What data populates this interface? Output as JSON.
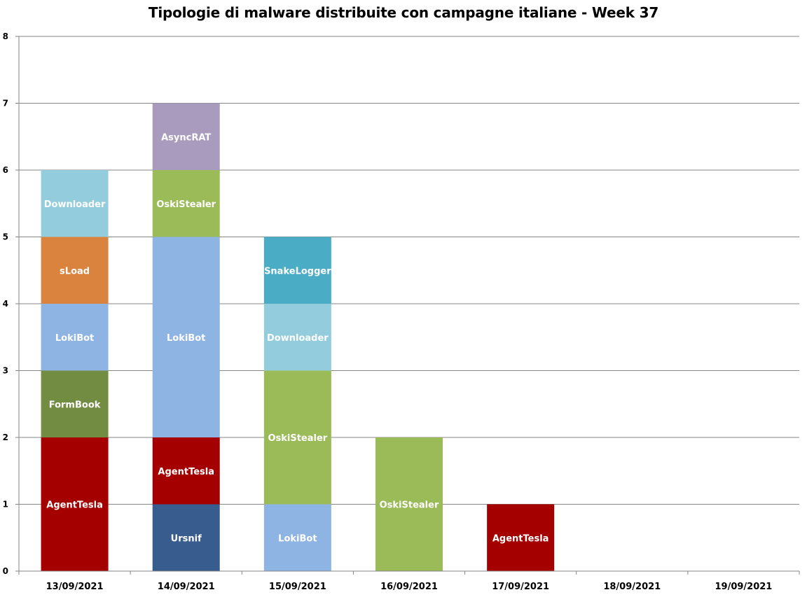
{
  "chart_data": {
    "type": "bar",
    "stacked": true,
    "title": "Tipologie di malware distribuite con campagne italiane - Week 37",
    "xlabel": "",
    "ylabel": "",
    "ylim": [
      0,
      8
    ],
    "yticks": [
      "0",
      "1",
      "2",
      "3",
      "4",
      "5",
      "6",
      "7",
      "8"
    ],
    "grid": true,
    "legend": "none",
    "categories": [
      "13/09/2021",
      "14/09/2021",
      "15/09/2021",
      "16/09/2021",
      "17/09/2021",
      "18/09/2021",
      "19/09/2021"
    ],
    "stacks": [
      [
        {
          "label": "AgentTesla",
          "value": 2,
          "color": "#A50000"
        },
        {
          "label": "FormBook",
          "value": 1,
          "color": "#728C41"
        },
        {
          "label": "LokiBot",
          "value": 1,
          "color": "#8EB4E3"
        },
        {
          "label": "sLoad",
          "value": 1,
          "color": "#DA833E"
        },
        {
          "label": "Downloader",
          "value": 1,
          "color": "#93CDDD"
        }
      ],
      [
        {
          "label": "Ursnif",
          "value": 1,
          "color": "#395C8E"
        },
        {
          "label": "AgentTesla",
          "value": 1,
          "color": "#A50000"
        },
        {
          "label": "LokiBot",
          "value": 3,
          "color": "#8EB4E3"
        },
        {
          "label": "OskiStealer",
          "value": 1,
          "color": "#9BBB59"
        },
        {
          "label": "AsyncRAT",
          "value": 1,
          "color": "#A99BBD"
        }
      ],
      [
        {
          "label": "LokiBot",
          "value": 1,
          "color": "#8EB4E3"
        },
        {
          "label": "OskiStealer",
          "value": 2,
          "color": "#9BBB59"
        },
        {
          "label": "Downloader",
          "value": 1,
          "color": "#93CDDD"
        },
        {
          "label": "SnakeLogger",
          "value": 1,
          "color": "#4BACC6"
        }
      ],
      [
        {
          "label": "OskiStealer",
          "value": 2,
          "color": "#9BBB59"
        }
      ],
      [
        {
          "label": "AgentTesla",
          "value": 1,
          "color": "#A50000"
        }
      ],
      [],
      []
    ]
  }
}
